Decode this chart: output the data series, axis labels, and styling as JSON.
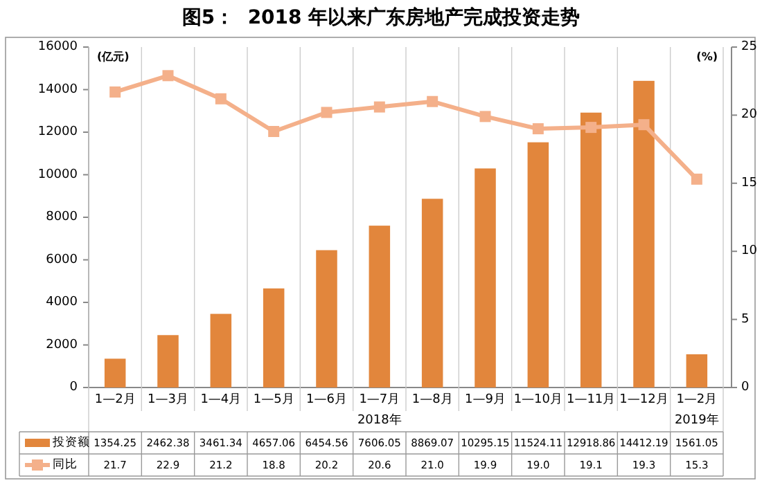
{
  "chart_data": {
    "type": "bar",
    "title": "图5：  2018 年以来广东房地产完成投资走势",
    "ylabel": "(亿元)",
    "y2label": "(%)",
    "categories": [
      "1—2月",
      "1—3月",
      "1—4月",
      "1—5月",
      "1—6月",
      "1—7月",
      "1—8月",
      "1—9月",
      "1—10月",
      "1—11月",
      "1—12月",
      "1—2月"
    ],
    "annotations": [
      "2018年",
      "2019年"
    ],
    "series": [
      {
        "name": "投资额",
        "color": "#e2863c",
        "values": [
          1354.25,
          2462.38,
          3461.34,
          4657.06,
          6454.56,
          7606.05,
          8869.07,
          10295.15,
          11524.11,
          12918.86,
          14412.19,
          1561.05
        ],
        "value_labels": [
          "1354.25",
          "2462.38",
          "3461.34",
          "4657.06",
          "6454.56",
          "7606.05",
          "8869.07",
          "10295.15",
          "11524.11",
          "12918.86",
          "14412.19",
          "1561.05"
        ]
      },
      {
        "name": "同比",
        "type": "line",
        "axis": "y2",
        "color": "#f4b08a",
        "values": [
          21.7,
          22.9,
          21.2,
          18.8,
          20.2,
          20.6,
          21.0,
          19.9,
          19.0,
          19.1,
          19.3,
          15.3
        ],
        "value_labels": [
          "21.7",
          "22.9",
          "21.2",
          "18.8",
          "20.2",
          "20.6",
          "21.0",
          "19.9",
          "19.0",
          "19.1",
          "19.3",
          "15.3"
        ]
      }
    ],
    "ylim": [
      0,
      16000
    ],
    "yticks": [
      0,
      2000,
      4000,
      6000,
      8000,
      10000,
      12000,
      14000,
      16000
    ],
    "y2lim": [
      0,
      25
    ],
    "y2ticks": [
      0,
      5,
      10,
      15,
      20,
      25
    ],
    "legend": "bottom",
    "marker": "square",
    "line_style": "solid"
  }
}
